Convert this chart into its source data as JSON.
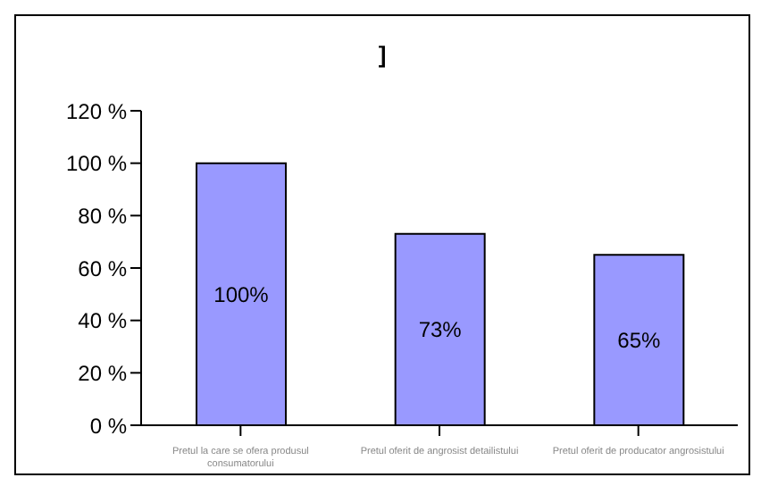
{
  "chart_data": {
    "type": "bar",
    "title": "]",
    "categories": [
      "Pretul la care se ofera produsul consumatorului",
      "Pretul oferit de angrosist detailistului",
      "Pretul oferit de producator angrosistului"
    ],
    "values": [
      100,
      73,
      65
    ],
    "color": "#9999ff",
    "value_labels": [
      "100%",
      "73%",
      "65%"
    ],
    "ylim": [
      0,
      120
    ],
    "yticks": [
      {
        "value": 0,
        "label": "0 %"
      },
      {
        "value": 20,
        "label": "20 %"
      },
      {
        "value": 40,
        "label": "40 %"
      },
      {
        "value": 60,
        "label": "60 %"
      },
      {
        "value": 80,
        "label": "80 %"
      },
      {
        "value": 100,
        "label": "100 %"
      },
      {
        "value": 120,
        "label": "120 %"
      }
    ],
    "grid": false,
    "legend": false
  }
}
